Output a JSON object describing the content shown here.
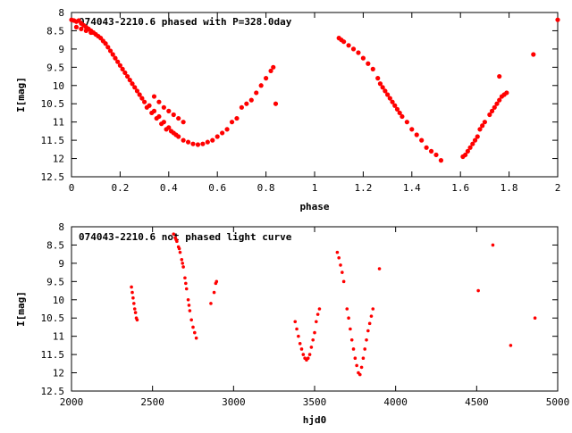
{
  "chart_data": [
    {
      "type": "scatter",
      "title": "074043-2210.6 phased with P=328.0day",
      "xlabel": "phase",
      "ylabel": "I[mag]",
      "xlim": [
        0,
        2
      ],
      "ylim": [
        12.5,
        8
      ],
      "y_inverted": true,
      "grid": false,
      "marker_color": "#ff0000",
      "xticks": [
        "0",
        "0.2",
        "0.4",
        "0.6",
        "0.8",
        "1",
        "1.2",
        "1.4",
        "1.6",
        "1.8",
        "2"
      ],
      "yticks": [
        "8",
        "8.5",
        "9",
        "9.5",
        "10",
        "10.5",
        "11",
        "11.5",
        "12",
        "12.5"
      ],
      "points": [
        [
          0.0,
          8.2
        ],
        [
          0.01,
          8.22
        ],
        [
          0.02,
          8.25
        ],
        [
          0.03,
          8.22
        ],
        [
          0.04,
          8.3
        ],
        [
          0.05,
          8.35
        ],
        [
          0.06,
          8.4
        ],
        [
          0.07,
          8.45
        ],
        [
          0.08,
          8.5
        ],
        [
          0.09,
          8.55
        ],
        [
          0.1,
          8.6
        ],
        [
          0.11,
          8.65
        ],
        [
          0.12,
          8.7
        ],
        [
          0.13,
          8.78
        ],
        [
          0.14,
          8.85
        ],
        [
          0.15,
          8.95
        ],
        [
          0.16,
          9.05
        ],
        [
          0.17,
          9.15
        ],
        [
          0.18,
          9.25
        ],
        [
          0.19,
          9.35
        ],
        [
          0.2,
          9.45
        ],
        [
          0.21,
          9.55
        ],
        [
          0.22,
          9.65
        ],
        [
          0.23,
          9.75
        ],
        [
          0.24,
          9.85
        ],
        [
          0.25,
          9.95
        ],
        [
          0.26,
          10.05
        ],
        [
          0.27,
          10.15
        ],
        [
          0.28,
          10.25
        ],
        [
          0.29,
          10.35
        ],
        [
          0.3,
          10.45
        ],
        [
          0.32,
          10.55
        ],
        [
          0.34,
          10.7
        ],
        [
          0.36,
          10.85
        ],
        [
          0.38,
          11.0
        ],
        [
          0.4,
          11.15
        ],
        [
          0.42,
          11.3
        ],
        [
          0.44,
          11.4
        ],
        [
          0.46,
          11.5
        ],
        [
          0.48,
          11.55
        ],
        [
          0.5,
          11.6
        ],
        [
          0.52,
          11.62
        ],
        [
          0.54,
          11.6
        ],
        [
          0.56,
          11.55
        ],
        [
          0.58,
          11.5
        ],
        [
          0.6,
          11.4
        ],
        [
          0.62,
          11.3
        ],
        [
          0.64,
          11.2
        ],
        [
          0.66,
          11.0
        ],
        [
          0.68,
          10.9
        ],
        [
          0.7,
          10.6
        ],
        [
          0.72,
          10.5
        ],
        [
          0.74,
          10.4
        ],
        [
          0.76,
          10.2
        ],
        [
          0.78,
          10.0
        ],
        [
          0.8,
          9.8
        ],
        [
          0.82,
          9.6
        ],
        [
          0.83,
          9.5
        ],
        [
          0.84,
          10.5
        ],
        [
          0.31,
          10.6
        ],
        [
          0.33,
          10.75
        ],
        [
          0.35,
          10.9
        ],
        [
          0.37,
          11.05
        ],
        [
          0.39,
          11.2
        ],
        [
          0.41,
          11.25
        ],
        [
          0.43,
          11.35
        ],
        [
          0.34,
          10.3
        ],
        [
          0.36,
          10.45
        ],
        [
          0.38,
          10.6
        ],
        [
          0.4,
          10.7
        ],
        [
          0.42,
          10.8
        ],
        [
          0.44,
          10.9
        ],
        [
          0.46,
          11.0
        ],
        [
          0.02,
          8.4
        ],
        [
          0.04,
          8.45
        ],
        [
          0.06,
          8.5
        ],
        [
          0.08,
          8.55
        ],
        [
          1.1,
          8.7
        ],
        [
          1.11,
          8.75
        ],
        [
          1.12,
          8.8
        ],
        [
          1.14,
          8.9
        ],
        [
          1.16,
          9.0
        ],
        [
          1.18,
          9.1
        ],
        [
          1.2,
          9.25
        ],
        [
          1.22,
          9.4
        ],
        [
          1.24,
          9.55
        ],
        [
          1.26,
          9.8
        ],
        [
          1.28,
          10.05
        ],
        [
          1.3,
          10.25
        ],
        [
          1.32,
          10.45
        ],
        [
          1.34,
          10.65
        ],
        [
          1.36,
          10.85
        ],
        [
          1.38,
          11.0
        ],
        [
          1.4,
          11.2
        ],
        [
          1.42,
          11.35
        ],
        [
          1.44,
          11.5
        ],
        [
          1.46,
          11.7
        ],
        [
          1.48,
          11.8
        ],
        [
          1.5,
          11.9
        ],
        [
          1.52,
          12.05
        ],
        [
          1.27,
          9.95
        ],
        [
          1.29,
          10.15
        ],
        [
          1.31,
          10.35
        ],
        [
          1.33,
          10.55
        ],
        [
          1.35,
          10.75
        ],
        [
          1.61,
          11.95
        ],
        [
          1.62,
          11.9
        ],
        [
          1.63,
          11.8
        ],
        [
          1.64,
          11.7
        ],
        [
          1.65,
          11.6
        ],
        [
          1.66,
          11.5
        ],
        [
          1.67,
          11.4
        ],
        [
          1.68,
          11.2
        ],
        [
          1.69,
          11.1
        ],
        [
          1.7,
          11.0
        ],
        [
          1.72,
          10.8
        ],
        [
          1.73,
          10.7
        ],
        [
          1.74,
          10.6
        ],
        [
          1.75,
          10.5
        ],
        [
          1.76,
          10.4
        ],
        [
          1.77,
          10.3
        ],
        [
          1.78,
          10.25
        ],
        [
          1.79,
          10.2
        ],
        [
          1.76,
          9.75
        ],
        [
          1.9,
          9.15
        ],
        [
          2.0,
          8.2
        ]
      ]
    },
    {
      "type": "scatter",
      "title": "074043-2210.6 not phased light curve",
      "xlabel": "hjd0",
      "ylabel": "I[mag]",
      "xlim": [
        2000,
        5000
      ],
      "ylim": [
        12.5,
        8
      ],
      "y_inverted": true,
      "grid": false,
      "marker_color": "#ff0000",
      "xticks": [
        "2000",
        "2500",
        "3000",
        "3500",
        "4000",
        "4500",
        "5000"
      ],
      "yticks": [
        "8",
        "8.5",
        "9",
        "9.5",
        "10",
        "10.5",
        "11",
        "11.5",
        "12",
        "12.5"
      ],
      "points": [
        [
          2370,
          9.65
        ],
        [
          2375,
          9.8
        ],
        [
          2380,
          9.95
        ],
        [
          2385,
          10.1
        ],
        [
          2390,
          10.25
        ],
        [
          2395,
          10.35
        ],
        [
          2400,
          10.5
        ],
        [
          2405,
          10.55
        ],
        [
          2630,
          8.2
        ],
        [
          2640,
          8.3
        ],
        [
          2650,
          8.4
        ],
        [
          2660,
          8.55
        ],
        [
          2670,
          8.7
        ],
        [
          2680,
          8.9
        ],
        [
          2690,
          9.1
        ],
        [
          2700,
          9.4
        ],
        [
          2710,
          9.7
        ],
        [
          2720,
          10.0
        ],
        [
          2730,
          10.3
        ],
        [
          2740,
          10.55
        ],
        [
          2750,
          10.75
        ],
        [
          2760,
          10.9
        ],
        [
          2770,
          11.05
        ],
        [
          2645,
          8.35
        ],
        [
          2665,
          8.6
        ],
        [
          2685,
          9.0
        ],
        [
          2705,
          9.55
        ],
        [
          2725,
          10.15
        ],
        [
          2860,
          10.1
        ],
        [
          2880,
          9.8
        ],
        [
          2890,
          9.55
        ],
        [
          2895,
          9.5
        ],
        [
          3380,
          10.6
        ],
        [
          3390,
          10.8
        ],
        [
          3400,
          11.0
        ],
        [
          3410,
          11.2
        ],
        [
          3420,
          11.35
        ],
        [
          3430,
          11.5
        ],
        [
          3440,
          11.6
        ],
        [
          3450,
          11.65
        ],
        [
          3460,
          11.6
        ],
        [
          3470,
          11.5
        ],
        [
          3480,
          11.3
        ],
        [
          3490,
          11.1
        ],
        [
          3500,
          10.9
        ],
        [
          3510,
          10.6
        ],
        [
          3520,
          10.4
        ],
        [
          3530,
          10.25
        ],
        [
          3640,
          8.7
        ],
        [
          3650,
          8.85
        ],
        [
          3660,
          9.05
        ],
        [
          3670,
          9.25
        ],
        [
          3680,
          9.5
        ],
        [
          3700,
          10.25
        ],
        [
          3710,
          10.5
        ],
        [
          3720,
          10.8
        ],
        [
          3730,
          11.1
        ],
        [
          3740,
          11.35
        ],
        [
          3750,
          11.6
        ],
        [
          3760,
          11.8
        ],
        [
          3770,
          12.0
        ],
        [
          3780,
          12.05
        ],
        [
          3790,
          11.85
        ],
        [
          3800,
          11.6
        ],
        [
          3810,
          11.35
        ],
        [
          3820,
          11.1
        ],
        [
          3830,
          10.85
        ],
        [
          3840,
          10.65
        ],
        [
          3850,
          10.45
        ],
        [
          3860,
          10.25
        ],
        [
          3900,
          9.15
        ],
        [
          4510,
          9.75
        ],
        [
          4600,
          8.5
        ],
        [
          4710,
          11.25
        ],
        [
          4860,
          10.5
        ]
      ]
    }
  ]
}
